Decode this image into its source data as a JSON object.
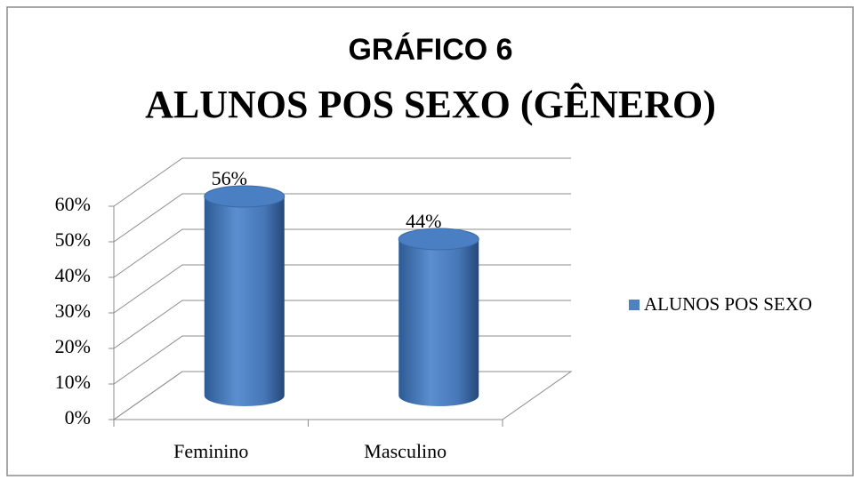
{
  "chart_data": {
    "type": "bar3d",
    "title": [
      "GRÁFICO 6",
      "ALUNOS POS SEXO (GÊNERO)"
    ],
    "categories": [
      "Feminino",
      "Masculino"
    ],
    "series": [
      {
        "name": "ALUNOS POS SEXO",
        "color": "#4f81bd",
        "values": [
          56,
          44
        ],
        "value_labels": [
          "56%",
          "44%"
        ]
      }
    ],
    "ylim": [
      0,
      60
    ],
    "yticks": [
      {
        "value": 0,
        "label": "0%"
      },
      {
        "value": 10,
        "label": "10%"
      },
      {
        "value": 20,
        "label": "20%"
      },
      {
        "value": 30,
        "label": "30%"
      },
      {
        "value": 40,
        "label": "40%"
      },
      {
        "value": 50,
        "label": "50%"
      },
      {
        "value": 60,
        "label": "60%"
      }
    ],
    "grid": true,
    "legend": "right"
  }
}
